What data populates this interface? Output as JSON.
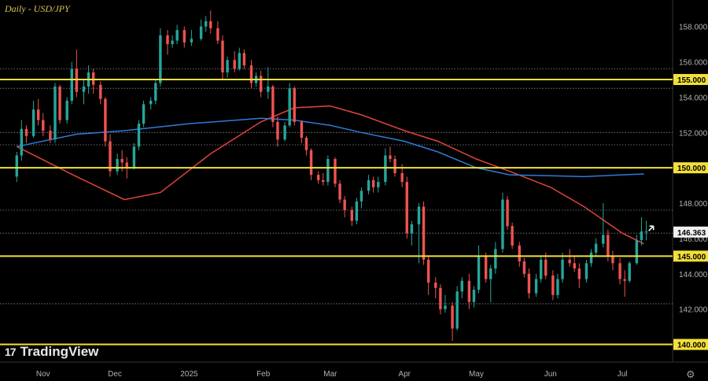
{
  "chart_data": {
    "type": "candlestick",
    "title": "Daily - USD/JPY",
    "xlabel": "",
    "ylabel": "",
    "ylim": [
      139.0,
      159.5
    ],
    "y_ticks": [
      140,
      142,
      144,
      146,
      148,
      150,
      152,
      154,
      156,
      158
    ],
    "x_ticks": [
      "Nov",
      "Dec",
      "2025",
      "Feb",
      "Mar",
      "Apr",
      "May",
      "Jun",
      "Jul"
    ],
    "grid": false,
    "horizontal_levels": [
      {
        "label": "155.000",
        "value": 155.0,
        "color": "#f2e03a"
      },
      {
        "label": "150.000",
        "value": 150.0,
        "color": "#f2e03a"
      },
      {
        "label": "145.000",
        "value": 145.0,
        "color": "#f2e03a"
      },
      {
        "label": "140.000",
        "value": 140.0,
        "color": "#f2e03a"
      }
    ],
    "dotted_levels": [
      155.6,
      154.5,
      152.0,
      151.3,
      147.6,
      146.3,
      142.3
    ],
    "last_price": {
      "label": "146.363",
      "value": 146.363
    },
    "series": [
      {
        "style": "moving-average",
        "color": "#e0433a",
        "x": [
          "2024-10-21",
          "2024-11-15",
          "2024-12-05",
          "2024-12-20",
          "2025-01-10",
          "2025-01-31",
          "2025-02-14",
          "2025-03-01",
          "2025-03-14",
          "2025-04-01",
          "2025-04-15",
          "2025-05-01",
          "2025-05-15",
          "2025-06-01",
          "2025-06-15",
          "2025-07-01",
          "2025-07-10"
        ],
        "values": [
          151.2,
          149.5,
          148.2,
          148.6,
          150.8,
          152.6,
          153.4,
          153.5,
          153.0,
          152.1,
          151.5,
          150.5,
          149.8,
          148.9,
          147.8,
          146.3,
          145.7
        ]
      },
      {
        "style": "moving-average",
        "color": "#2e7bd6",
        "x": [
          "2024-10-21",
          "2024-11-15",
          "2024-12-05",
          "2025-01-01",
          "2025-01-31",
          "2025-02-14",
          "2025-03-01",
          "2025-03-14",
          "2025-04-01",
          "2025-04-15",
          "2025-05-01",
          "2025-05-15",
          "2025-06-01",
          "2025-06-15",
          "2025-07-01",
          "2025-07-10"
        ],
        "values": [
          151.2,
          151.9,
          152.1,
          152.5,
          152.8,
          152.7,
          152.4,
          152.0,
          151.5,
          150.9,
          150.0,
          149.6,
          149.55,
          149.5,
          149.6,
          149.65
        ]
      }
    ],
    "candles": [
      [
        "2024-10-21",
        149.5,
        150.9,
        149.2,
        150.7
      ],
      [
        "2024-10-23",
        150.7,
        152.7,
        150.4,
        152.2
      ],
      [
        "2024-10-25",
        152.2,
        152.4,
        151.4,
        151.8
      ],
      [
        "2024-10-28",
        151.8,
        153.8,
        151.7,
        153.3
      ],
      [
        "2024-10-30",
        153.3,
        153.9,
        152.4,
        152.7
      ],
      [
        "2024-11-01",
        152.7,
        153.1,
        151.8,
        152.1
      ],
      [
        "2024-11-04",
        152.1,
        152.4,
        151.4,
        151.6
      ],
      [
        "2024-11-06",
        151.6,
        154.8,
        151.4,
        154.6
      ],
      [
        "2024-11-08",
        154.6,
        154.7,
        152.5,
        152.7
      ],
      [
        "2024-11-11",
        152.7,
        154.0,
        152.5,
        153.8
      ],
      [
        "2024-11-13",
        153.8,
        156.0,
        153.6,
        155.6
      ],
      [
        "2024-11-15",
        155.6,
        156.7,
        154.0,
        154.3
      ],
      [
        "2024-11-18",
        154.3,
        155.0,
        153.6,
        154.6
      ],
      [
        "2024-11-20",
        154.6,
        155.8,
        154.2,
        155.4
      ],
      [
        "2024-11-22",
        155.4,
        155.6,
        154.2,
        154.7
      ],
      [
        "2024-11-25",
        154.7,
        154.9,
        153.6,
        153.9
      ],
      [
        "2024-11-27",
        153.9,
        154.0,
        151.2,
        151.5
      ],
      [
        "2024-11-29",
        151.5,
        151.9,
        149.5,
        149.8
      ],
      [
        "2024-12-02",
        149.8,
        150.8,
        149.6,
        150.5
      ],
      [
        "2024-12-04",
        150.5,
        151.0,
        149.8,
        150.3
      ],
      [
        "2024-12-06",
        150.3,
        150.6,
        149.4,
        150.0
      ],
      [
        "2024-12-09",
        150.0,
        151.4,
        149.9,
        151.2
      ],
      [
        "2024-12-11",
        151.2,
        152.7,
        151.0,
        152.5
      ],
      [
        "2024-12-13",
        152.5,
        153.8,
        152.3,
        153.6
      ],
      [
        "2024-12-16",
        153.6,
        154.0,
        153.3,
        153.8
      ],
      [
        "2024-12-18",
        153.8,
        155.0,
        153.6,
        154.8
      ],
      [
        "2024-12-20",
        154.8,
        157.9,
        154.6,
        157.5
      ],
      [
        "2024-12-23",
        157.5,
        157.8,
        156.4,
        157.0
      ],
      [
        "2024-12-25",
        157.0,
        157.5,
        156.8,
        157.2
      ],
      [
        "2024-12-27",
        157.2,
        158.1,
        157.0,
        157.8
      ],
      [
        "2024-12-30",
        157.8,
        158.0,
        156.8,
        157.1
      ],
      [
        "2025-01-02",
        157.1,
        157.8,
        156.9,
        157.3
      ],
      [
        "2025-01-06",
        157.3,
        158.4,
        157.2,
        158.0
      ],
      [
        "2025-01-08",
        158.0,
        158.6,
        157.7,
        158.3
      ],
      [
        "2025-01-10",
        158.3,
        158.9,
        157.6,
        157.9
      ],
      [
        "2025-01-13",
        157.9,
        158.3,
        157.0,
        157.2
      ],
      [
        "2025-01-15",
        157.2,
        157.5,
        155.0,
        155.4
      ],
      [
        "2025-01-17",
        155.4,
        156.3,
        155.1,
        156.1
      ],
      [
        "2025-01-20",
        156.1,
        156.6,
        155.4,
        155.6
      ],
      [
        "2025-01-22",
        155.6,
        156.8,
        155.5,
        156.5
      ],
      [
        "2025-01-24",
        156.5,
        156.7,
        155.6,
        155.8
      ],
      [
        "2025-01-27",
        155.8,
        156.1,
        154.5,
        154.8
      ],
      [
        "2025-01-29",
        154.8,
        155.4,
        154.6,
        155.2
      ],
      [
        "2025-01-31",
        155.2,
        155.5,
        154.0,
        154.3
      ],
      [
        "2025-02-03",
        154.3,
        155.7,
        153.9,
        154.6
      ],
      [
        "2025-02-05",
        154.6,
        154.7,
        152.3,
        152.6
      ],
      [
        "2025-02-07",
        152.6,
        152.9,
        151.2,
        151.6
      ],
      [
        "2025-02-10",
        151.6,
        152.6,
        151.5,
        152.4
      ],
      [
        "2025-02-12",
        152.4,
        154.8,
        152.3,
        154.5
      ],
      [
        "2025-02-14",
        154.5,
        154.6,
        152.4,
        152.6
      ],
      [
        "2025-02-17",
        152.6,
        152.7,
        151.4,
        151.7
      ],
      [
        "2025-02-19",
        151.7,
        151.8,
        150.7,
        151.0
      ],
      [
        "2025-02-21",
        151.0,
        151.1,
        149.3,
        149.6
      ],
      [
        "2025-02-24",
        149.6,
        149.8,
        149.1,
        149.3
      ],
      [
        "2025-02-26",
        149.3,
        149.7,
        149.0,
        149.2
      ],
      [
        "2025-02-28",
        149.2,
        150.7,
        149.0,
        150.5
      ],
      [
        "2025-03-03",
        150.5,
        150.6,
        148.9,
        149.1
      ],
      [
        "2025-03-05",
        149.1,
        149.3,
        148.0,
        148.2
      ],
      [
        "2025-03-07",
        148.2,
        148.4,
        147.2,
        147.6
      ],
      [
        "2025-03-10",
        147.6,
        147.8,
        146.7,
        147.0
      ],
      [
        "2025-03-12",
        147.0,
        148.3,
        146.8,
        148.1
      ],
      [
        "2025-03-14",
        148.1,
        148.9,
        147.7,
        148.7
      ],
      [
        "2025-03-17",
        148.7,
        149.6,
        148.5,
        149.3
      ],
      [
        "2025-03-19",
        149.3,
        149.5,
        148.6,
        148.9
      ],
      [
        "2025-03-21",
        148.9,
        149.5,
        148.6,
        149.2
      ],
      [
        "2025-03-24",
        149.2,
        151.1,
        149.0,
        150.7
      ],
      [
        "2025-03-26",
        150.7,
        151.2,
        150.3,
        150.5
      ],
      [
        "2025-03-28",
        150.5,
        150.7,
        149.5,
        149.7
      ],
      [
        "2025-03-31",
        149.7,
        150.2,
        148.9,
        149.2
      ],
      [
        "2025-04-02",
        149.2,
        149.5,
        146.0,
        146.3
      ],
      [
        "2025-04-04",
        146.3,
        147.0,
        145.6,
        146.8
      ],
      [
        "2025-04-07",
        146.8,
        148.0,
        144.6,
        147.8
      ],
      [
        "2025-04-09",
        147.8,
        148.1,
        144.5,
        144.8
      ],
      [
        "2025-04-11",
        144.8,
        145.0,
        142.8,
        143.5
      ],
      [
        "2025-04-14",
        143.5,
        143.8,
        142.6,
        143.2
      ],
      [
        "2025-04-16",
        143.2,
        143.4,
        141.7,
        142.0
      ],
      [
        "2025-04-18",
        142.0,
        142.8,
        141.8,
        142.2
      ],
      [
        "2025-04-21",
        142.2,
        142.4,
        140.2,
        140.9
      ],
      [
        "2025-04-23",
        140.9,
        143.3,
        140.8,
        143.0
      ],
      [
        "2025-04-25",
        143.0,
        143.8,
        142.6,
        143.6
      ],
      [
        "2025-04-28",
        143.6,
        144.0,
        142.0,
        142.4
      ],
      [
        "2025-04-30",
        142.4,
        143.3,
        142.1,
        143.1
      ],
      [
        "2025-05-02",
        143.1,
        145.6,
        142.9,
        145.0
      ],
      [
        "2025-05-05",
        145.0,
        145.2,
        143.5,
        143.7
      ],
      [
        "2025-05-07",
        143.7,
        144.5,
        142.4,
        144.3
      ],
      [
        "2025-05-09",
        144.3,
        145.8,
        144.0,
        145.4
      ],
      [
        "2025-05-12",
        145.4,
        148.6,
        145.2,
        148.2
      ],
      [
        "2025-05-14",
        148.2,
        148.4,
        146.5,
        146.7
      ],
      [
        "2025-05-16",
        146.7,
        146.9,
        145.4,
        145.6
      ],
      [
        "2025-05-19",
        145.6,
        145.8,
        144.4,
        144.7
      ],
      [
        "2025-05-21",
        144.7,
        144.9,
        143.8,
        144.0
      ],
      [
        "2025-05-23",
        144.0,
        144.3,
        142.6,
        142.9
      ],
      [
        "2025-05-26",
        142.9,
        144.0,
        142.7,
        143.7
      ],
      [
        "2025-05-28",
        143.7,
        145.0,
        143.5,
        144.8
      ],
      [
        "2025-05-30",
        144.8,
        145.2,
        143.7,
        143.9
      ],
      [
        "2025-06-02",
        143.9,
        144.2,
        142.5,
        142.8
      ],
      [
        "2025-06-04",
        142.8,
        144.0,
        142.6,
        143.7
      ],
      [
        "2025-06-06",
        143.7,
        145.2,
        143.5,
        144.8
      ],
      [
        "2025-06-09",
        144.8,
        145.4,
        144.4,
        144.6
      ],
      [
        "2025-06-11",
        144.6,
        145.0,
        144.1,
        144.3
      ],
      [
        "2025-06-13",
        144.3,
        144.6,
        143.2,
        143.7
      ],
      [
        "2025-06-16",
        143.7,
        144.8,
        143.5,
        144.6
      ],
      [
        "2025-06-18",
        144.6,
        145.4,
        144.4,
        145.2
      ],
      [
        "2025-06-20",
        145.2,
        146.0,
        145.0,
        145.7
      ],
      [
        "2025-06-23",
        145.7,
        148.0,
        145.5,
        146.2
      ],
      [
        "2025-06-25",
        146.2,
        146.5,
        144.7,
        145.0
      ],
      [
        "2025-06-27",
        145.0,
        145.3,
        144.2,
        144.6
      ],
      [
        "2025-06-30",
        144.6,
        144.9,
        143.4,
        143.7
      ],
      [
        "2025-07-02",
        143.7,
        144.2,
        142.7,
        143.6
      ],
      [
        "2025-07-04",
        143.6,
        144.7,
        143.5,
        144.6
      ],
      [
        "2025-07-07",
        144.6,
        146.2,
        144.5,
        145.9
      ],
      [
        "2025-07-09",
        145.9,
        147.2,
        145.6,
        146.4
      ],
      [
        "2025-07-11",
        146.4,
        147.0,
        145.9,
        146.4
      ]
    ]
  },
  "watermark": {
    "logo_mark": "17",
    "brand": "TradingView"
  },
  "settings_icon": "gear-icon"
}
